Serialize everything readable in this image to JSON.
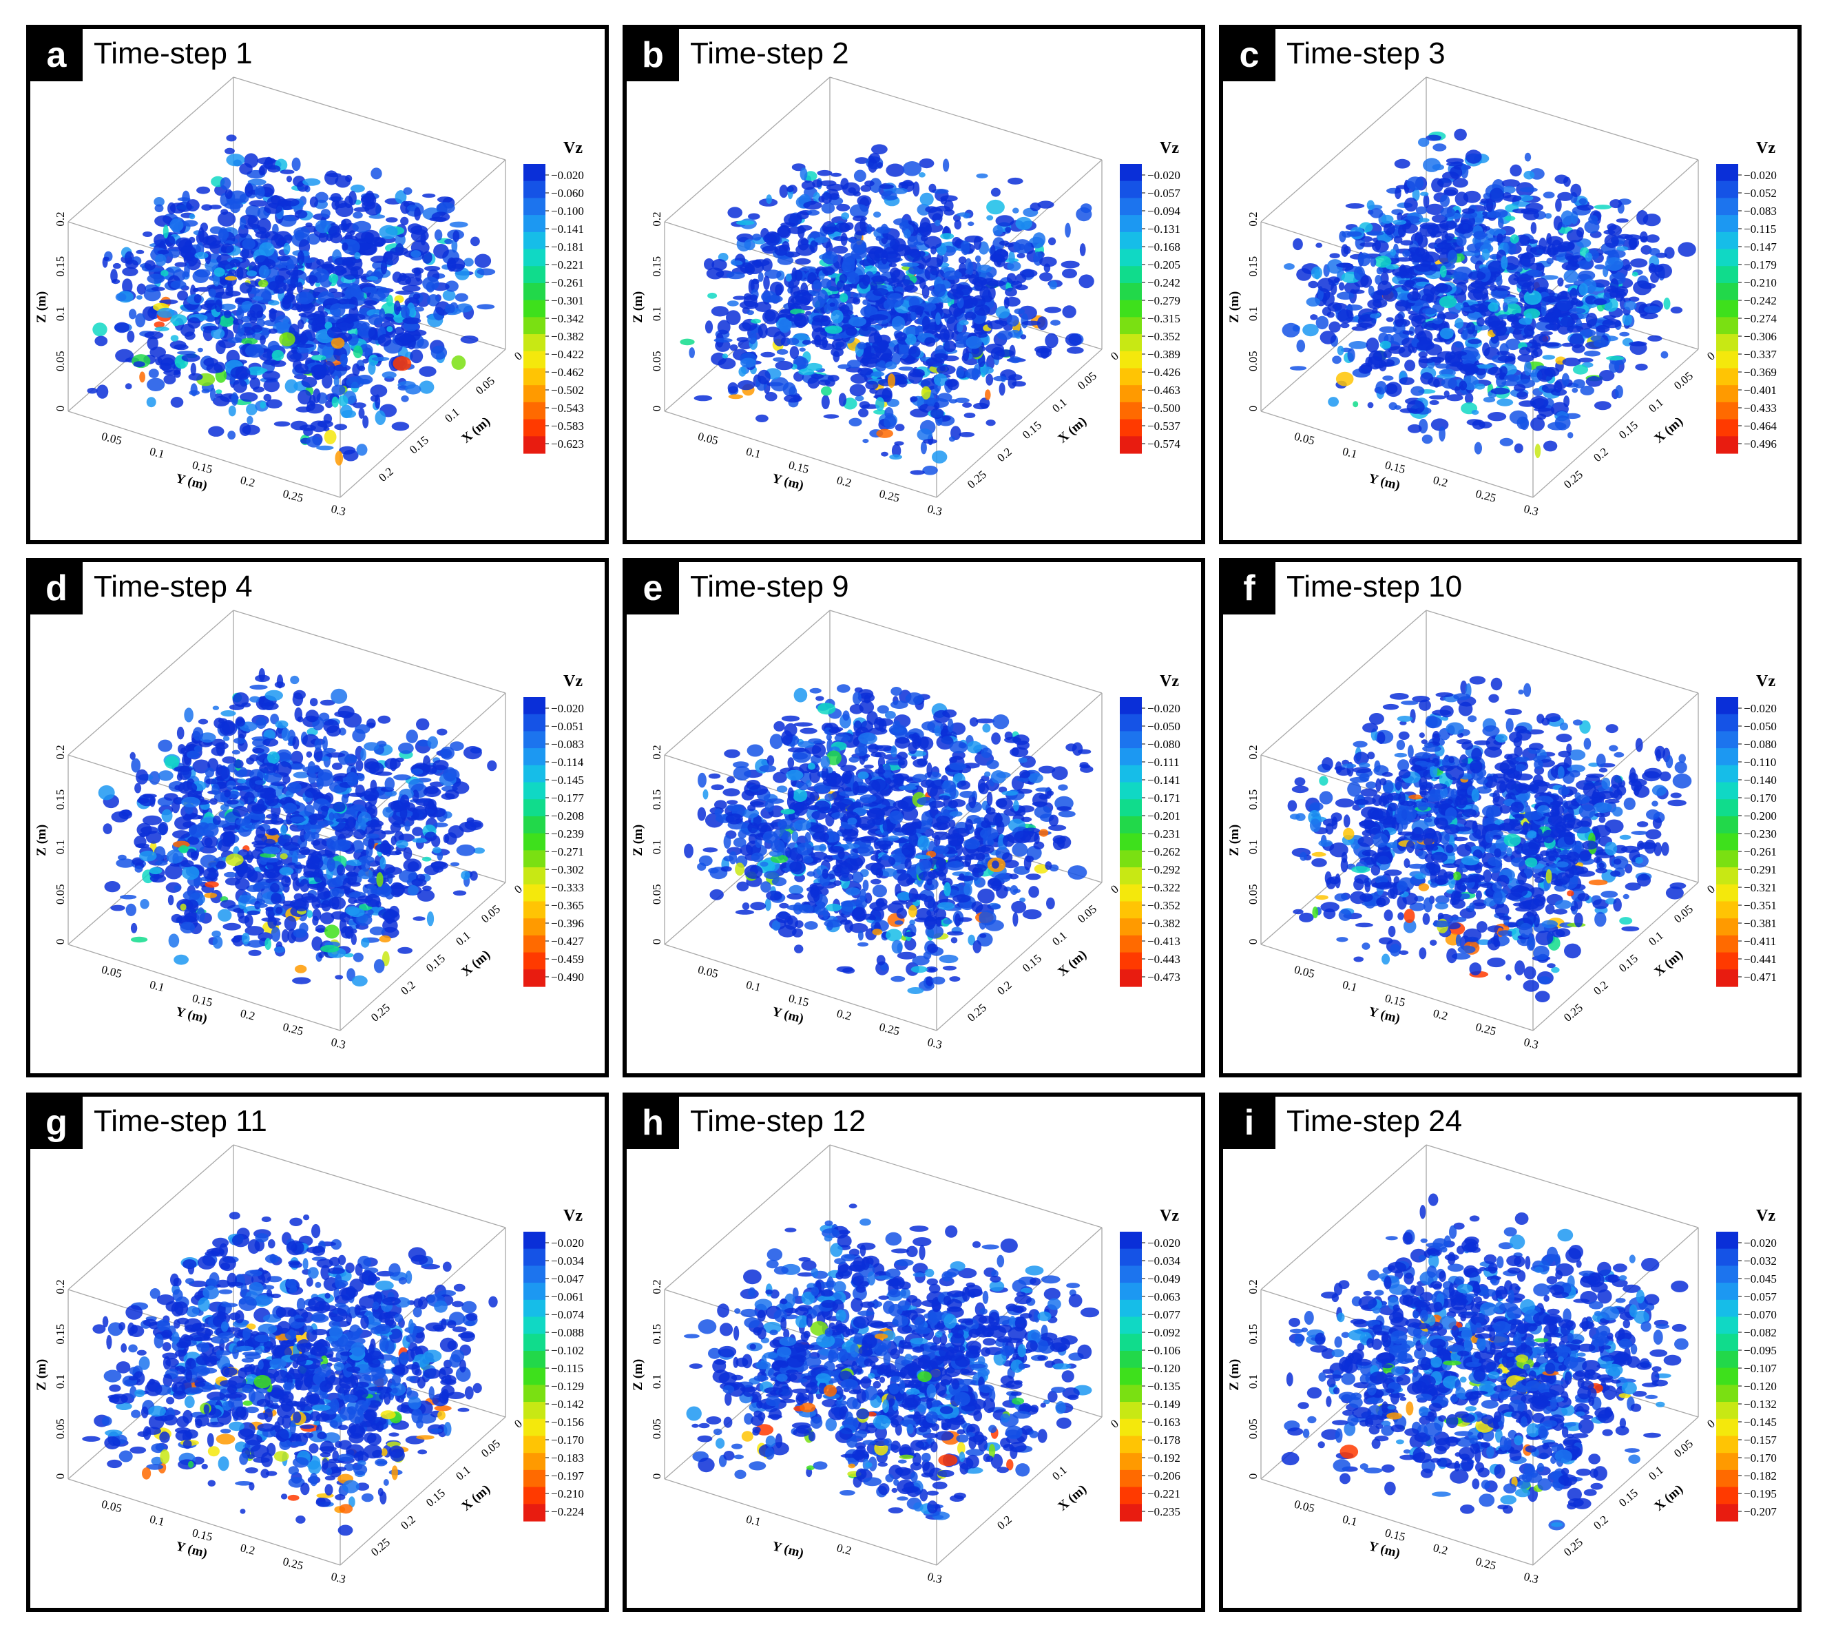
{
  "colorbar_colors": [
    "#0a2fd8",
    "#1553e6",
    "#1c74ee",
    "#1c98f2",
    "#16bde8",
    "#10d8c4",
    "#10dc8c",
    "#22d84a",
    "#3ee01c",
    "#7ae012",
    "#c8e814",
    "#f4e80c",
    "#ffc404",
    "#ff9a00",
    "#ff6a00",
    "#ff3a00",
    "#e81c10"
  ],
  "colorbar_label": "Vz",
  "axis_labels": {
    "x": "X (m)",
    "y": "Y (m)",
    "z": "Z (m)"
  },
  "panels": [
    {
      "letter": "a",
      "title": "Time-step 1",
      "z_ticks": [
        "0",
        "0.05",
        "0.1",
        "0.15",
        "0.2"
      ],
      "y_ticks": [
        "0.05",
        "0.1",
        "0.15",
        "0.2",
        "0.25",
        "0.3"
      ],
      "x_ticks": [
        "0",
        "0.05",
        "0.1",
        "0.15",
        "0.2"
      ],
      "colorbar": [
        "-0.020",
        "-0.060",
        "-0.100",
        "-0.141",
        "-0.181",
        "-0.221",
        "-0.261",
        "-0.301",
        "-0.342",
        "-0.382",
        "-0.422",
        "-0.462",
        "-0.502",
        "-0.543",
        "-0.583",
        "-0.623"
      ]
    },
    {
      "letter": "b",
      "title": "Time-step 2",
      "z_ticks": [
        "0",
        "0.05",
        "0.1",
        "0.15",
        "0.2"
      ],
      "y_ticks": [
        "0.05",
        "0.1",
        "0.15",
        "0.2",
        "0.25",
        "0.3"
      ],
      "x_ticks": [
        "0",
        "0.05",
        "0.1",
        "0.15",
        "0.2",
        "0.25"
      ],
      "colorbar": [
        "-0.020",
        "-0.057",
        "-0.094",
        "-0.131",
        "-0.168",
        "-0.205",
        "-0.242",
        "-0.279",
        "-0.315",
        "-0.352",
        "-0.389",
        "-0.426",
        "-0.463",
        "-0.500",
        "-0.537",
        "-0.574"
      ]
    },
    {
      "letter": "c",
      "title": "Time-step 3",
      "z_ticks": [
        "0",
        "0.05",
        "0.1",
        "0.15",
        "0.2"
      ],
      "y_ticks": [
        "0.05",
        "0.1",
        "0.15",
        "0.2",
        "0.25",
        "0.3"
      ],
      "x_ticks": [
        "0",
        "0.05",
        "0.1",
        "0.15",
        "0.2",
        "0.25"
      ],
      "colorbar": [
        "-0.020",
        "-0.052",
        "-0.083",
        "-0.115",
        "-0.147",
        "-0.179",
        "-0.210",
        "-0.242",
        "-0.274",
        "-0.306",
        "-0.337",
        "-0.369",
        "-0.401",
        "-0.433",
        "-0.464",
        "-0.496"
      ]
    },
    {
      "letter": "d",
      "title": "Time-step 4",
      "z_ticks": [
        "0",
        "0.05",
        "0.1",
        "0.15",
        "0.2"
      ],
      "y_ticks": [
        "0.05",
        "0.1",
        "0.15",
        "0.2",
        "0.25",
        "0.3"
      ],
      "x_ticks": [
        "0",
        "0.05",
        "0.1",
        "0.15",
        "0.2",
        "0.25"
      ],
      "colorbar": [
        "-0.020",
        "-0.051",
        "-0.083",
        "-0.114",
        "-0.145",
        "-0.177",
        "-0.208",
        "-0.239",
        "-0.271",
        "-0.302",
        "-0.333",
        "-0.365",
        "-0.396",
        "-0.427",
        "-0.459",
        "-0.490"
      ]
    },
    {
      "letter": "e",
      "title": "Time-step 9",
      "z_ticks": [
        "0",
        "0.05",
        "0.1",
        "0.15",
        "0.2"
      ],
      "y_ticks": [
        "0.05",
        "0.1",
        "0.15",
        "0.2",
        "0.25",
        "0.3"
      ],
      "x_ticks": [
        "0",
        "0.05",
        "0.1",
        "0.15",
        "0.2",
        "0.25"
      ],
      "colorbar": [
        "-0.020",
        "-0.050",
        "-0.080",
        "-0.111",
        "-0.141",
        "-0.171",
        "-0.201",
        "-0.231",
        "-0.262",
        "-0.292",
        "-0.322",
        "-0.352",
        "-0.382",
        "-0.413",
        "-0.443",
        "-0.473"
      ]
    },
    {
      "letter": "f",
      "title": "Time-step 10",
      "z_ticks": [
        "0",
        "0.05",
        "0.1",
        "0.15",
        "0.2"
      ],
      "y_ticks": [
        "0.05",
        "0.1",
        "0.15",
        "0.2",
        "0.25",
        "0.3"
      ],
      "x_ticks": [
        "0",
        "0.05",
        "0.1",
        "0.15",
        "0.2",
        "0.25"
      ],
      "colorbar": [
        "-0.020",
        "-0.050",
        "-0.080",
        "-0.110",
        "-0.140",
        "-0.170",
        "-0.200",
        "-0.230",
        "-0.261",
        "-0.291",
        "-0.321",
        "-0.351",
        "-0.381",
        "-0.411",
        "-0.441",
        "-0.471"
      ]
    },
    {
      "letter": "g",
      "title": "Time-step 11",
      "z_ticks": [
        "0",
        "0.05",
        "0.1",
        "0.15",
        "0.2"
      ],
      "y_ticks": [
        "0.05",
        "0.1",
        "0.15",
        "0.2",
        "0.25",
        "0.3"
      ],
      "x_ticks": [
        "0",
        "0.05",
        "0.1",
        "0.15",
        "0.2",
        "0.25"
      ],
      "colorbar": [
        "-0.020",
        "-0.034",
        "-0.047",
        "-0.061",
        "-0.074",
        "-0.088",
        "-0.102",
        "-0.115",
        "-0.129",
        "-0.142",
        "-0.156",
        "-0.170",
        "-0.183",
        "-0.197",
        "-0.210",
        "-0.224"
      ]
    },
    {
      "letter": "h",
      "title": "Time-step 12",
      "z_ticks": [
        "0",
        "0.05",
        "0.1",
        "0.15",
        "0.2"
      ],
      "y_ticks": [
        "0.1",
        "0.2",
        "0.3"
      ],
      "x_ticks": [
        "0",
        "0.1",
        "0.2"
      ],
      "colorbar": [
        "-0.020",
        "-0.034",
        "-0.049",
        "-0.063",
        "-0.077",
        "-0.092",
        "-0.106",
        "-0.120",
        "-0.135",
        "-0.149",
        "-0.163",
        "-0.178",
        "-0.192",
        "-0.206",
        "-0.221",
        "-0.235"
      ]
    },
    {
      "letter": "i",
      "title": "Time-step 24",
      "z_ticks": [
        "0",
        "0.05",
        "0.1",
        "0.15",
        "0.2"
      ],
      "y_ticks": [
        "0.05",
        "0.1",
        "0.15",
        "0.2",
        "0.25",
        "0.3"
      ],
      "x_ticks": [
        "0",
        "0.05",
        "0.1",
        "0.15",
        "0.2",
        "0.25"
      ],
      "colorbar": [
        "-0.020",
        "-0.032",
        "-0.045",
        "-0.057",
        "-0.070",
        "-0.082",
        "-0.095",
        "-0.107",
        "-0.120",
        "-0.132",
        "-0.145",
        "-0.157",
        "-0.170",
        "-0.182",
        "-0.195",
        "-0.207"
      ]
    }
  ]
}
